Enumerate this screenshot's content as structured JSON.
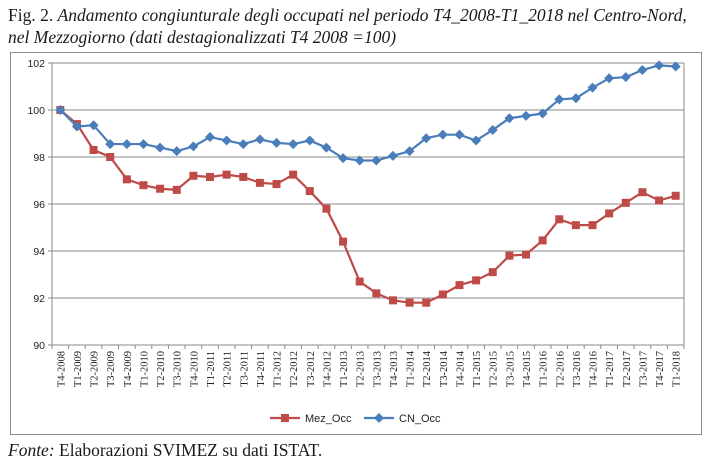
{
  "caption": {
    "prefix": "Fig. 2.",
    "title": "Andamento congiunturale degli occupati nel periodo T4_2008-T1_2018 nel Centro-Nord, nel Mezzogiorno (dati destagionalizzati T4 2008 =100)"
  },
  "source": {
    "label": "Fonte:",
    "text": "Elaborazioni SVIMEZ su dati ISTAT."
  },
  "chart_data": {
    "type": "line",
    "title": "",
    "xlabel": "",
    "ylabel": "",
    "ylim": [
      90,
      102
    ],
    "yticks": [
      90,
      92,
      94,
      96,
      98,
      100,
      102
    ],
    "grid": "horizontal",
    "legend_position": "bottom",
    "categories": [
      "T4-2008",
      "T1-2009",
      "T2-2009",
      "T3-2009",
      "T4-2009",
      "T1-2010",
      "T2-2010",
      "T3-2010",
      "T4-2010",
      "T1-2011",
      "T2-2011",
      "T3-2011",
      "T4-2011",
      "T1-2012",
      "T2-2012",
      "T3-2012",
      "T4-2012",
      "T1-2013",
      "T2-2013",
      "T3-2013",
      "T4-2013",
      "T1-2014",
      "T2-2014",
      "T3-2014",
      "T4-2014",
      "T1-2015",
      "T2-2015",
      "T3-2015",
      "T4-2015",
      "T1-2016",
      "T2-2016",
      "T3-2016",
      "T4-2016",
      "T1-2017",
      "T2-2017",
      "T3-2017",
      "T4-2017",
      "T1-2018"
    ],
    "series": [
      {
        "name": "Mez_Occ",
        "color": "#be4b48",
        "marker": "square",
        "values": [
          100.0,
          99.4,
          98.3,
          98.0,
          97.05,
          96.8,
          96.65,
          96.6,
          97.2,
          97.15,
          97.25,
          97.15,
          96.9,
          96.85,
          97.25,
          96.55,
          95.8,
          94.4,
          92.7,
          92.2,
          91.9,
          91.8,
          91.8,
          92.15,
          92.55,
          92.75,
          93.1,
          93.8,
          93.85,
          94.45,
          95.35,
          95.1,
          95.1,
          95.6,
          96.05,
          96.5,
          96.15,
          96.35
        ]
      },
      {
        "name": "CN_Occ",
        "color": "#4a7ebb",
        "marker": "diamond",
        "values": [
          100.0,
          99.3,
          99.35,
          98.55,
          98.55,
          98.55,
          98.4,
          98.25,
          98.45,
          98.85,
          98.7,
          98.55,
          98.75,
          98.6,
          98.55,
          98.7,
          98.4,
          97.95,
          97.85,
          97.85,
          98.05,
          98.25,
          98.8,
          98.95,
          98.95,
          98.7,
          99.15,
          99.65,
          99.75,
          99.85,
          100.45,
          100.5,
          100.95,
          101.35,
          101.4,
          101.7,
          101.9,
          101.85
        ]
      }
    ]
  }
}
